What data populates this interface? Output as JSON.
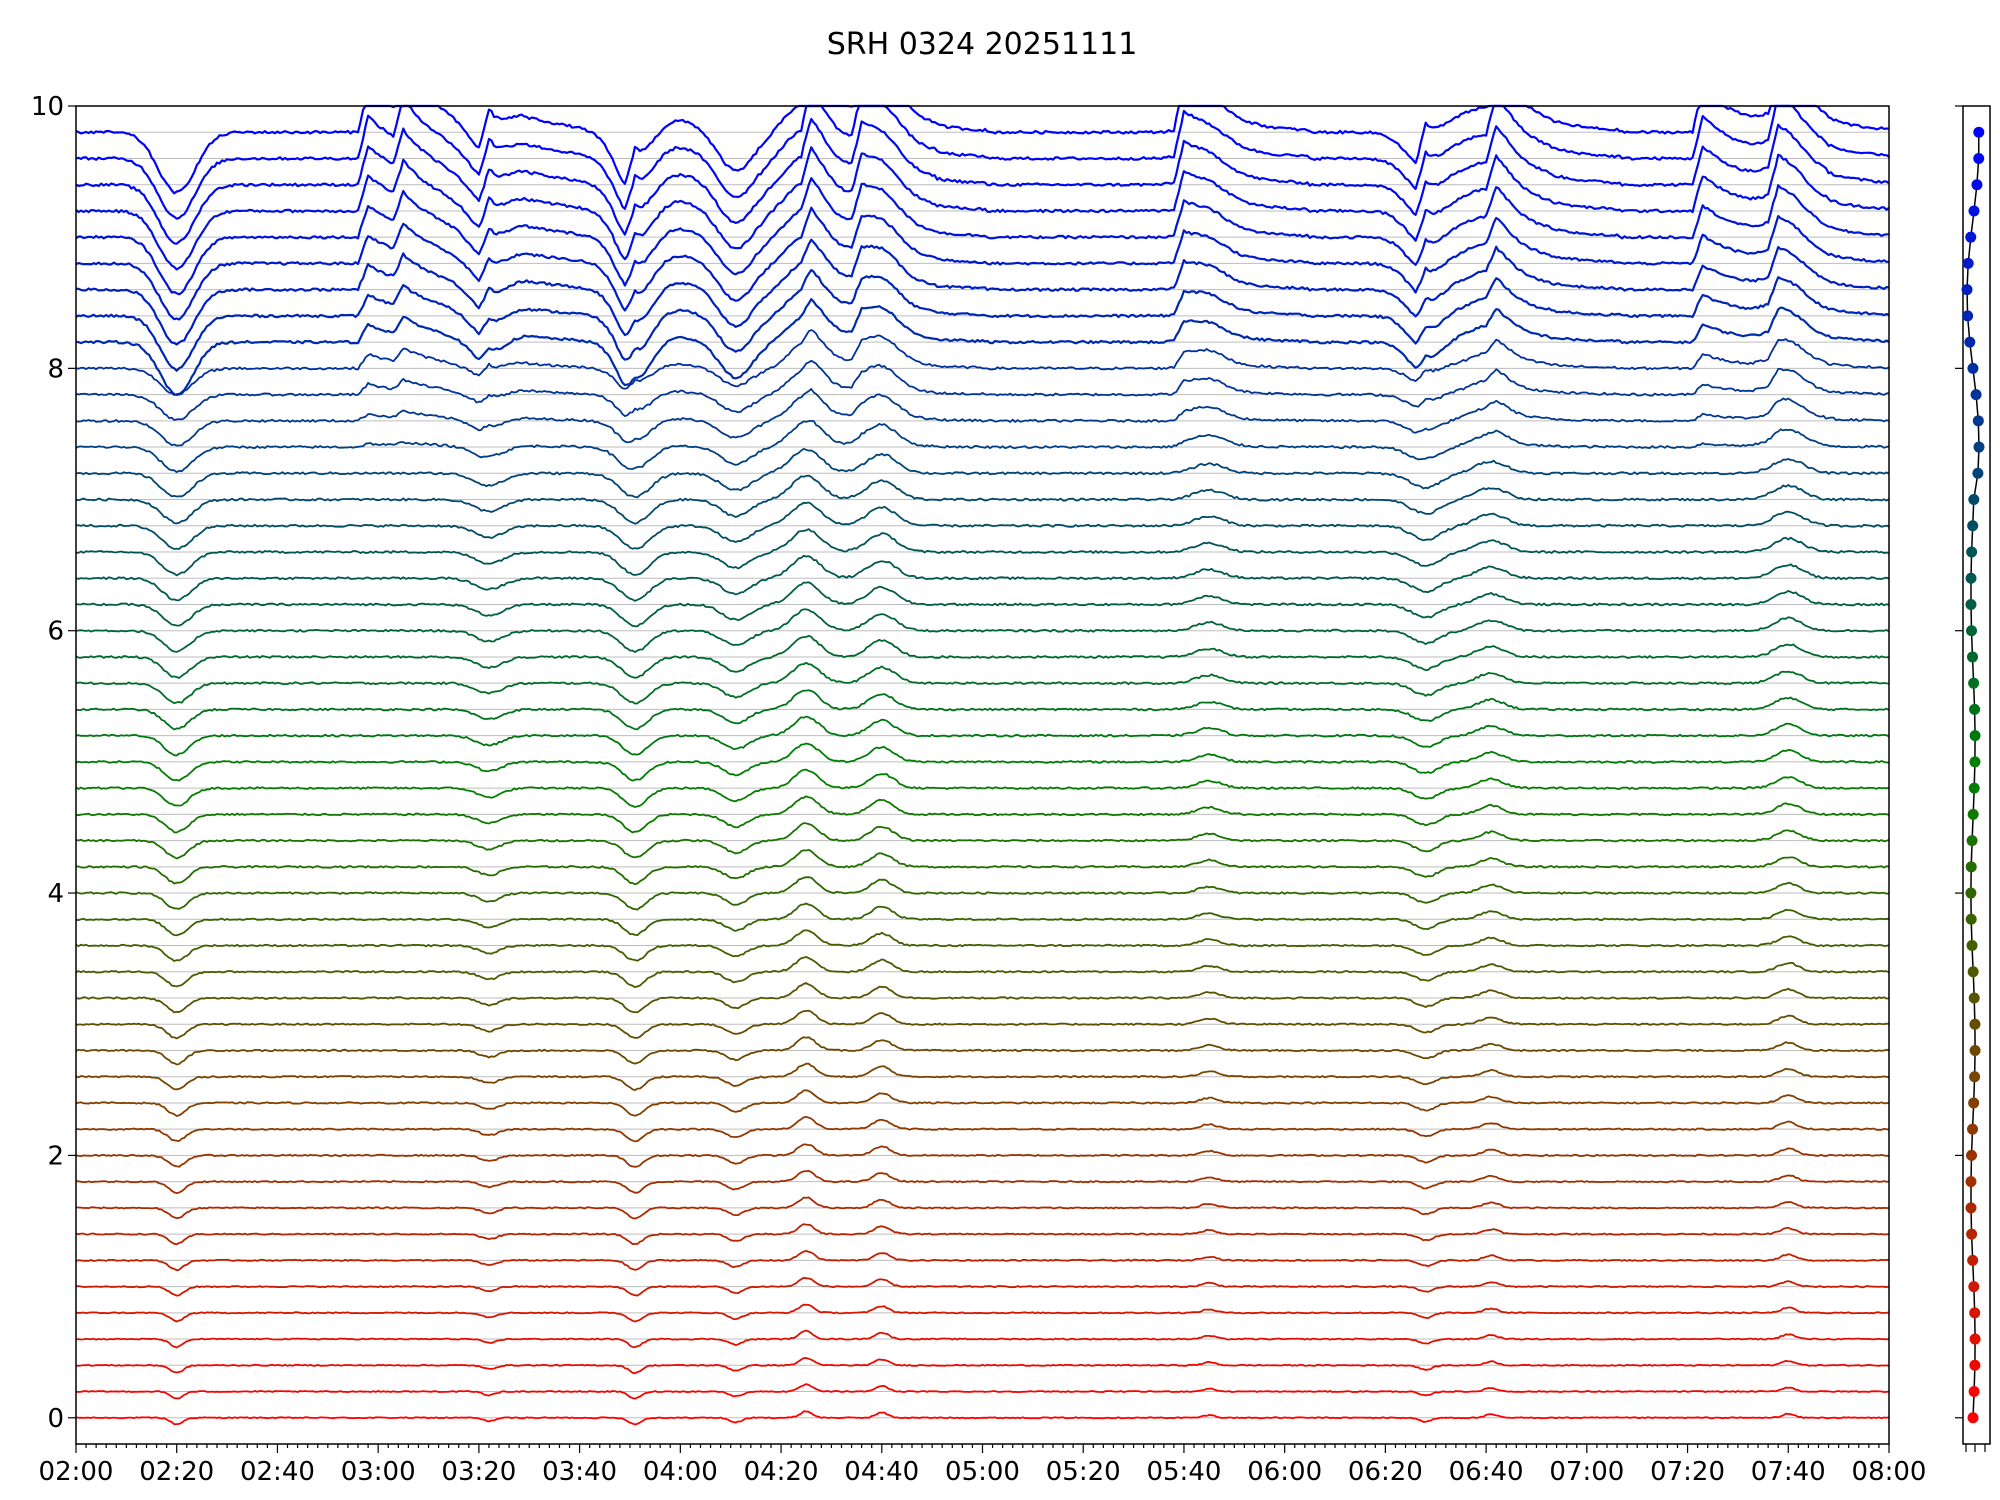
{
  "chart_data": {
    "type": "line",
    "title": "SRH 0324 20251111",
    "xlabel": "",
    "ylabel": "",
    "x_range": [
      "02:00",
      "08:00"
    ],
    "x_ticks": [
      "02:00",
      "02:20",
      "02:40",
      "03:00",
      "03:20",
      "03:40",
      "04:00",
      "04:20",
      "04:40",
      "05:00",
      "05:20",
      "05:40",
      "06:00",
      "06:20",
      "06:40",
      "07:00",
      "07:20",
      "07:40",
      "08:00"
    ],
    "ylim": [
      -0.2,
      10
    ],
    "y_ticks": [
      "0",
      "2",
      "4",
      "6",
      "8",
      "10"
    ],
    "grid": "horizontal gray line at each trace baseline",
    "legend": "none",
    "series_count": 50,
    "series_offset_step": 0.2,
    "color_gradient": [
      "#ff0000",
      "#008000",
      "#0000ff"
    ],
    "events": [
      {
        "time": "02:20",
        "polarity": "dip",
        "strength": 1.0
      },
      {
        "time": "03:22",
        "polarity": "dip",
        "strength": 0.5
      },
      {
        "time": "03:51",
        "polarity": "dip",
        "strength": 1.0
      },
      {
        "time": "04:11",
        "polarity": "dip",
        "strength": 0.7
      },
      {
        "time": "04:25",
        "polarity": "peak",
        "strength": 1.0
      },
      {
        "time": "04:40",
        "polarity": "peak",
        "strength": 0.8
      },
      {
        "time": "05:45",
        "polarity": "peak",
        "strength": 0.4
      },
      {
        "time": "06:28",
        "polarity": "dip",
        "strength": 0.6
      },
      {
        "time": "06:41",
        "polarity": "peak",
        "strength": 0.5
      },
      {
        "time": "07:40",
        "polarity": "peak",
        "strength": 0.6
      }
    ],
    "top_series_bursts": [
      "02:58",
      "03:05",
      "03:22",
      "03:51",
      "04:26",
      "04:36",
      "05:40",
      "06:28",
      "06:42",
      "07:23",
      "07:38"
    ]
  }
}
